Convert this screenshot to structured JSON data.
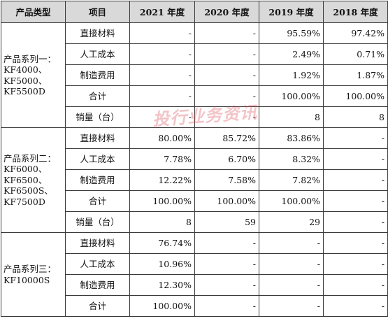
{
  "columns": [
    "产品类型",
    "项目",
    "2021 年度",
    "2020 年度",
    "2019 年度",
    "2018 年度"
  ],
  "groups": [
    {
      "label": "产品系列一：KF4000、KF5000、KF5500D",
      "rows": [
        [
          "直接材料",
          "-",
          "-",
          "95.59%",
          "97.42%"
        ],
        [
          "人工成本",
          "-",
          "-",
          "2.49%",
          "0.71%"
        ],
        [
          "制造费用",
          "-",
          "-",
          "1.92%",
          "1.87%"
        ],
        [
          "合计",
          "-",
          "-",
          "100.00%",
          "100.00%"
        ],
        [
          "销量（台）",
          "-",
          "-",
          "8",
          "8"
        ]
      ]
    },
    {
      "label": "产品系列二：KF6000、KF6500、KF6500S、KF7500D",
      "rows": [
        [
          "直接材料",
          "80.00%",
          "85.72%",
          "83.86%",
          "-"
        ],
        [
          "人工成本",
          "7.78%",
          "6.70%",
          "8.32%",
          "-"
        ],
        [
          "制造费用",
          "12.22%",
          "7.58%",
          "7.82%",
          "-"
        ],
        [
          "合计",
          "100.00%",
          "100.00%",
          "100.00%",
          "-"
        ],
        [
          "销量（台）",
          "8",
          "59",
          "29",
          "-"
        ]
      ]
    },
    {
      "label": "产品系列三：KF10000S",
      "rows": [
        [
          "直接材料",
          "76.74%",
          "-",
          "-",
          "-"
        ],
        [
          "人工成本",
          "10.96%",
          "-",
          "-",
          "-"
        ],
        [
          "制造费用",
          "12.30%",
          "-",
          "-",
          "-"
        ],
        [
          "合计",
          "100.00%",
          "-",
          "-",
          "-"
        ]
      ]
    }
  ],
  "watermark": "投行业务资讯"
}
